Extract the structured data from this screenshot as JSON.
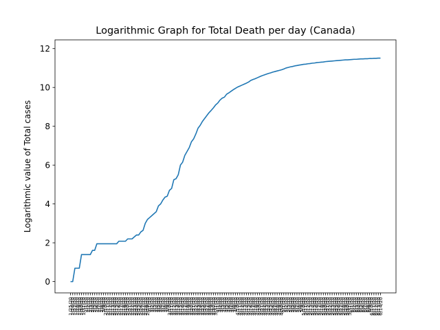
{
  "chart_data": {
    "type": "line",
    "title": "Logarithmic Graph for Total Death per day (Canada)",
    "ylabel": "Logarithmic value of Total cases",
    "color": "#1f77b4",
    "categories": [
      "1/25/20",
      "1/26/20",
      "1/27/20",
      "1/28/20",
      "1/29/20",
      "1/30/20",
      "1/31/20",
      "2/1/20",
      "2/2/20",
      "2/3/20",
      "2/4/20",
      "2/5/20",
      "2/6/20",
      "2/7/20",
      "2/8/20",
      "2/9/20",
      "2/10/20",
      "2/11/20",
      "2/12/20",
      "2/13/20",
      "2/14/20",
      "2/15/20",
      "2/16/20",
      "2/17/20",
      "2/18/20",
      "2/19/20",
      "2/20/20",
      "2/21/20",
      "2/22/20",
      "2/23/20",
      "2/24/20",
      "2/25/20",
      "2/26/20",
      "2/27/20",
      "2/28/20",
      "2/29/20",
      "3/1/20",
      "3/2/20",
      "3/3/20",
      "3/4/20",
      "3/5/20",
      "3/6/20",
      "3/7/20",
      "3/8/20",
      "3/9/20",
      "3/10/20",
      "3/11/20",
      "3/12/20",
      "3/13/20",
      "3/14/20",
      "3/15/20",
      "3/16/20",
      "3/17/20",
      "3/18/20",
      "3/19/20",
      "3/20/20",
      "3/21/20",
      "3/22/20",
      "3/23/20",
      "3/24/20",
      "3/25/20",
      "3/26/20",
      "3/27/20",
      "3/28/20",
      "3/29/20",
      "3/30/20",
      "3/31/20",
      "4/1/20",
      "4/2/20",
      "4/3/20",
      "4/4/20",
      "4/5/20",
      "4/6/20",
      "4/7/20",
      "4/8/20",
      "4/9/20",
      "4/10/20",
      "4/11/20",
      "4/12/20",
      "4/13/20",
      "4/14/20",
      "4/15/20",
      "4/16/20",
      "4/17/20",
      "4/18/20",
      "4/19/20",
      "4/20/20",
      "4/21/20",
      "4/22/20",
      "4/23/20",
      "4/24/20",
      "4/25/20",
      "4/26/20",
      "4/27/20",
      "4/28/20",
      "4/29/20",
      "4/30/20",
      "5/1/20",
      "5/2/20",
      "5/3/20",
      "5/4/20",
      "5/5/20",
      "5/6/20",
      "5/7/20",
      "5/8/20",
      "5/9/20",
      "5/10/20",
      "5/11/20",
      "5/12/20",
      "5/13/20",
      "5/14/20",
      "5/15/20",
      "5/16/20",
      "5/17/20",
      "5/18/20",
      "5/19/20",
      "5/20/20",
      "5/21/20",
      "5/22/20",
      "5/23/20",
      "5/24/20",
      "5/25/20",
      "5/26/20",
      "5/27/20",
      "5/28/20",
      "5/29/20",
      "5/30/20",
      "5/31/20",
      "6/1/20",
      "6/2/20",
      "6/3/20",
      "6/4/20",
      "6/5/20",
      "6/6/20",
      "6/7/20",
      "6/8/20",
      "6/9/20",
      "6/10/20",
      "6/11/20",
      "6/12/20",
      "6/13/20",
      "6/14/20"
    ],
    "values": [
      0,
      0,
      0.69,
      0.69,
      0.69,
      1.39,
      1.39,
      1.39,
      1.39,
      1.39,
      1.61,
      1.61,
      1.95,
      1.95,
      1.95,
      1.95,
      1.95,
      1.95,
      1.95,
      1.95,
      1.95,
      1.95,
      2.08,
      2.08,
      2.08,
      2.08,
      2.2,
      2.2,
      2.2,
      2.3,
      2.4,
      2.4,
      2.56,
      2.64,
      3.0,
      3.2,
      3.3,
      3.4,
      3.5,
      3.6,
      3.9,
      4.0,
      4.2,
      4.35,
      4.4,
      4.7,
      4.8,
      5.25,
      5.3,
      5.5,
      6.0,
      6.15,
      6.5,
      6.7,
      6.9,
      7.2,
      7.35,
      7.6,
      7.9,
      8.05,
      8.25,
      8.4,
      8.55,
      8.7,
      8.82,
      8.95,
      9.1,
      9.2,
      9.35,
      9.45,
      9.5,
      9.65,
      9.72,
      9.8,
      9.88,
      9.95,
      10.02,
      10.07,
      10.12,
      10.17,
      10.22,
      10.28,
      10.36,
      10.41,
      10.45,
      10.5,
      10.55,
      10.6,
      10.64,
      10.68,
      10.72,
      10.75,
      10.79,
      10.82,
      10.85,
      10.88,
      10.91,
      10.95,
      11.0,
      11.03,
      11.06,
      11.08,
      11.11,
      11.13,
      11.15,
      11.17,
      11.19,
      11.2,
      11.22,
      11.23,
      11.25,
      11.26,
      11.28,
      11.29,
      11.3,
      11.31,
      11.33,
      11.34,
      11.35,
      11.36,
      11.37,
      11.38,
      11.39,
      11.4,
      11.41,
      11.42,
      11.42,
      11.43,
      11.44,
      11.45,
      11.45,
      11.46,
      11.47,
      11.47,
      11.48,
      11.48,
      11.49,
      11.49,
      11.5,
      11.5,
      11.51,
      11.51
    ],
    "ylim": [
      -0.58,
      12.45
    ],
    "yticks": [
      0,
      2,
      4,
      6,
      8,
      10,
      12
    ]
  }
}
